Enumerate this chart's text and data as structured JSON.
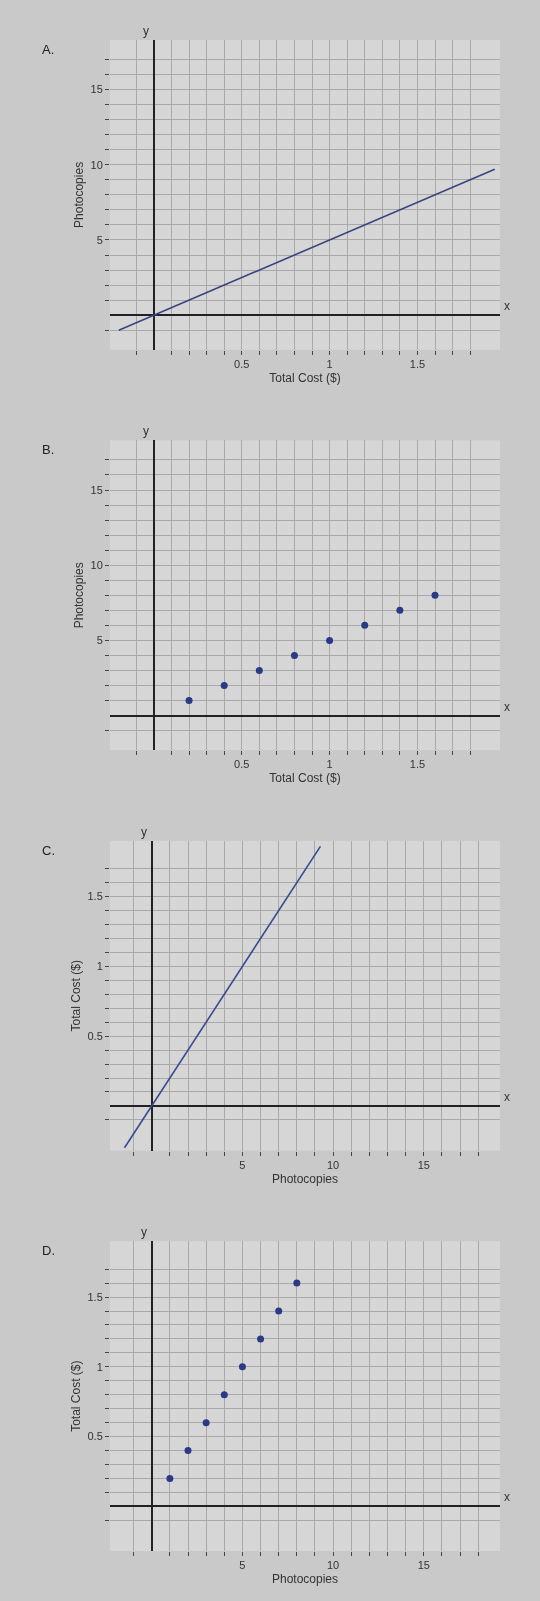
{
  "chart_data": [
    {
      "type": "line",
      "title": "A.",
      "xlabel": "Total Cost ($)",
      "ylabel": "Photocopies",
      "annotations": [
        "y",
        "x"
      ],
      "grid": true,
      "marker": "none",
      "series": [
        {
          "color": "#3a4580",
          "x": [
            -0.2,
            1.94
          ],
          "values": [
            -1,
            9.7
          ]
        }
      ],
      "xlim": [
        -0.25,
        1.97
      ],
      "ylim": [
        -2.3,
        18.3
      ],
      "xticks": [
        {
          "value": -0.1,
          "label": null
        },
        {
          "value": 0.1,
          "label": null
        },
        {
          "value": 0.2,
          "label": null
        },
        {
          "value": 0.3,
          "label": null
        },
        {
          "value": 0.4,
          "label": null
        },
        0.5,
        {
          "value": 0.6,
          "label": null
        },
        {
          "value": 0.7,
          "label": null
        },
        {
          "value": 0.8,
          "label": null
        },
        {
          "value": 0.9,
          "label": null
        },
        1,
        {
          "value": 1.1,
          "label": null
        },
        {
          "value": 1.2,
          "label": null
        },
        {
          "value": 1.3,
          "label": null
        },
        {
          "value": 1.4,
          "label": null
        },
        1.5,
        {
          "value": 1.6,
          "label": null
        },
        {
          "value": 1.7,
          "label": null
        },
        {
          "value": 1.8,
          "label": null
        }
      ],
      "yticks": [
        {
          "value": -1,
          "label": null
        },
        {
          "value": 1,
          "label": null
        },
        {
          "value": 2,
          "label": null
        },
        {
          "value": 3,
          "label": null
        },
        {
          "value": 4,
          "label": null
        },
        5,
        {
          "value": 6,
          "label": null
        },
        {
          "value": 7,
          "label": null
        },
        {
          "value": 8,
          "label": null
        },
        {
          "value": 9,
          "label": null
        },
        10,
        {
          "value": 11,
          "label": null
        },
        {
          "value": 12,
          "label": null
        },
        {
          "value": 13,
          "label": null
        },
        {
          "value": 14,
          "label": null
        },
        15,
        {
          "value": 16,
          "label": null
        },
        {
          "value": 17,
          "label": null
        }
      ]
    },
    {
      "type": "scatter",
      "title": "B.",
      "xlabel": "Total Cost ($)",
      "ylabel": "Photocopies",
      "annotations": [
        "y",
        "x"
      ],
      "grid": true,
      "marker": "circle",
      "series": [
        {
          "color": "#2b3a86",
          "x": [
            0.2,
            0.4,
            0.6,
            0.8,
            1,
            1.2,
            1.4,
            1.6
          ],
          "values": [
            1,
            2,
            3,
            4,
            5,
            6,
            7,
            8
          ]
        }
      ],
      "xlim": [
        -0.25,
        1.97
      ],
      "ylim": [
        -2.3,
        18.3
      ],
      "xticks": [
        {
          "value": -0.1,
          "label": null
        },
        {
          "value": 0.1,
          "label": null
        },
        {
          "value": 0.2,
          "label": null
        },
        {
          "value": 0.3,
          "label": null
        },
        {
          "value": 0.4,
          "label": null
        },
        0.5,
        {
          "value": 0.6,
          "label": null
        },
        {
          "value": 0.7,
          "label": null
        },
        {
          "value": 0.8,
          "label": null
        },
        {
          "value": 0.9,
          "label": null
        },
        1,
        {
          "value": 1.1,
          "label": null
        },
        {
          "value": 1.2,
          "label": null
        },
        {
          "value": 1.3,
          "label": null
        },
        {
          "value": 1.4,
          "label": null
        },
        1.5,
        {
          "value": 1.6,
          "label": null
        },
        {
          "value": 1.7,
          "label": null
        },
        {
          "value": 1.8,
          "label": null
        }
      ],
      "yticks": [
        {
          "value": -1,
          "label": null
        },
        {
          "value": 1,
          "label": null
        },
        {
          "value": 2,
          "label": null
        },
        {
          "value": 3,
          "label": null
        },
        {
          "value": 4,
          "label": null
        },
        5,
        {
          "value": 6,
          "label": null
        },
        {
          "value": 7,
          "label": null
        },
        {
          "value": 8,
          "label": null
        },
        {
          "value": 9,
          "label": null
        },
        10,
        {
          "value": 11,
          "label": null
        },
        {
          "value": 12,
          "label": null
        },
        {
          "value": 13,
          "label": null
        },
        {
          "value": 14,
          "label": null
        },
        15,
        {
          "value": 16,
          "label": null
        },
        {
          "value": 17,
          "label": null
        }
      ]
    },
    {
      "type": "line",
      "title": "C.",
      "xlabel": "Photocopies",
      "ylabel": "Total Cost ($)",
      "annotations": [
        "y",
        "x"
      ],
      "grid": true,
      "marker": "none",
      "series": [
        {
          "color": "#3a4a90",
          "x": [
            -1.5,
            9.3
          ],
          "values": [
            -0.3,
            1.86
          ]
        }
      ],
      "xlim": [
        -2.3,
        19.2
      ],
      "ylim": [
        -0.32,
        1.9
      ],
      "xticks": [
        {
          "value": -1,
          "label": null
        },
        {
          "value": 1,
          "label": null
        },
        {
          "value": 2,
          "label": null
        },
        {
          "value": 3,
          "label": null
        },
        {
          "value": 4,
          "label": null
        },
        5,
        {
          "value": 6,
          "label": null
        },
        {
          "value": 7,
          "label": null
        },
        {
          "value": 8,
          "label": null
        },
        {
          "value": 9,
          "label": null
        },
        10,
        {
          "value": 11,
          "label": null
        },
        {
          "value": 12,
          "label": null
        },
        {
          "value": 13,
          "label": null
        },
        {
          "value": 14,
          "label": null
        },
        15,
        {
          "value": 16,
          "label": null
        },
        {
          "value": 17,
          "label": null
        },
        {
          "value": 18,
          "label": null
        }
      ],
      "yticks": [
        {
          "value": -0.1,
          "label": null
        },
        {
          "value": 0.1,
          "label": null
        },
        {
          "value": 0.2,
          "label": null
        },
        {
          "value": 0.3,
          "label": null
        },
        {
          "value": 0.4,
          "label": null
        },
        0.5,
        {
          "value": 0.6,
          "label": null
        },
        {
          "value": 0.7,
          "label": null
        },
        {
          "value": 0.8,
          "label": null
        },
        {
          "value": 0.9,
          "label": null
        },
        1,
        {
          "value": 1.1,
          "label": null
        },
        {
          "value": 1.2,
          "label": null
        },
        {
          "value": 1.3,
          "label": null
        },
        {
          "value": 1.4,
          "label": null
        },
        1.5,
        {
          "value": 1.6,
          "label": null
        },
        {
          "value": 1.7,
          "label": null
        }
      ]
    },
    {
      "type": "scatter",
      "title": "D.",
      "xlabel": "Photocopies",
      "ylabel": "Total Cost ($)",
      "annotations": [
        "y",
        "x"
      ],
      "grid": true,
      "marker": "circle",
      "series": [
        {
          "color": "#2b3a86",
          "x": [
            1,
            2,
            3,
            4,
            5,
            6,
            7,
            8
          ],
          "values": [
            0.2,
            0.4,
            0.6,
            0.8,
            1,
            1.2,
            1.4,
            1.6
          ]
        }
      ],
      "xlim": [
        -2.3,
        19.2
      ],
      "ylim": [
        -0.32,
        1.9
      ],
      "xticks": [
        {
          "value": -1,
          "label": null
        },
        {
          "value": 1,
          "label": null
        },
        {
          "value": 2,
          "label": null
        },
        {
          "value": 3,
          "label": null
        },
        {
          "value": 4,
          "label": null
        },
        5,
        {
          "value": 6,
          "label": null
        },
        {
          "value": 7,
          "label": null
        },
        {
          "value": 8,
          "label": null
        },
        {
          "value": 9,
          "label": null
        },
        10,
        {
          "value": 11,
          "label": null
        },
        {
          "value": 12,
          "label": null
        },
        {
          "value": 13,
          "label": null
        },
        {
          "value": 14,
          "label": null
        },
        15,
        {
          "value": 16,
          "label": null
        },
        {
          "value": 17,
          "label": null
        },
        {
          "value": 18,
          "label": null
        }
      ],
      "yticks": [
        {
          "value": -0.1,
          "label": null
        },
        {
          "value": 0.1,
          "label": null
        },
        {
          "value": 0.2,
          "label": null
        },
        {
          "value": 0.3,
          "label": null
        },
        {
          "value": 0.4,
          "label": null
        },
        0.5,
        {
          "value": 0.6,
          "label": null
        },
        {
          "value": 0.7,
          "label": null
        },
        {
          "value": 0.8,
          "label": null
        },
        {
          "value": 0.9,
          "label": null
        },
        1,
        {
          "value": 1.1,
          "label": null
        },
        {
          "value": 1.2,
          "label": null
        },
        {
          "value": 1.3,
          "label": null
        },
        {
          "value": 1.4,
          "label": null
        },
        1.5,
        {
          "value": 1.6,
          "label": null
        },
        {
          "value": 1.7,
          "label": null
        }
      ]
    }
  ]
}
